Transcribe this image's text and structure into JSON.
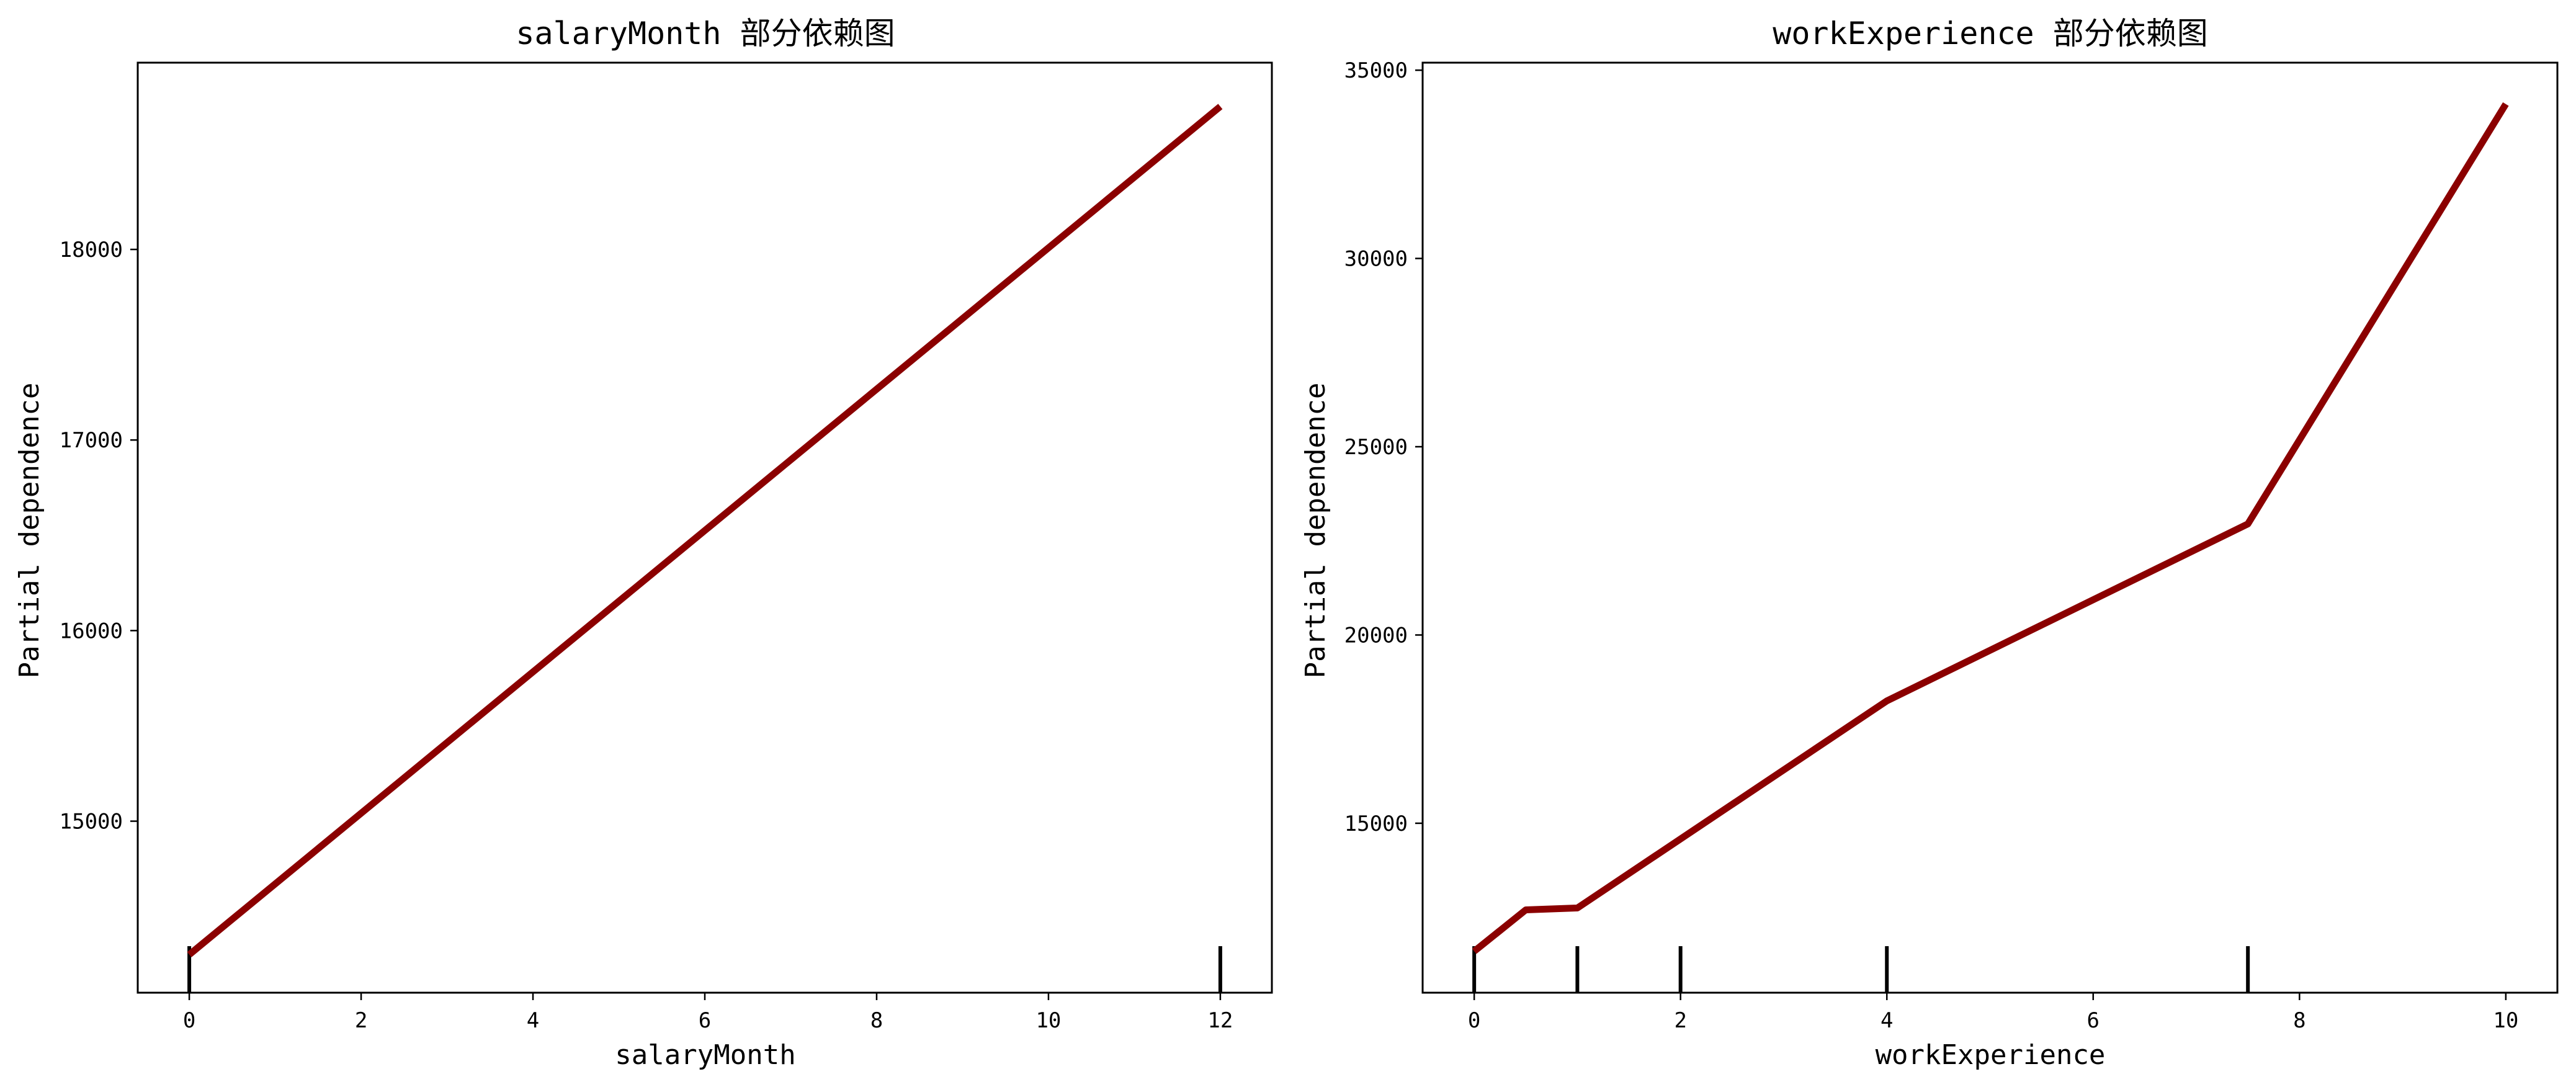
{
  "chart_data": [
    {
      "type": "line",
      "title": "salaryMonth 部分依赖图",
      "xlabel": "salaryMonth",
      "ylabel": "Partial dependence",
      "xlim": [
        -0.6,
        12.6
      ],
      "ylim": [
        14100,
        18980
      ],
      "xticks": [
        0,
        2,
        4,
        6,
        8,
        10,
        12
      ],
      "yticks": [
        15000,
        16000,
        17000,
        18000
      ],
      "series": [
        {
          "x": [
            0,
            12
          ],
          "y": [
            14300,
            18750
          ]
        }
      ],
      "rug": [
        0,
        12
      ],
      "line_color": "#8b0000",
      "grid": false
    },
    {
      "type": "line",
      "title": "workExperience 部分依赖图",
      "xlabel": "workExperience",
      "ylabel": "Partial dependence",
      "xlim": [
        -0.5,
        10.5
      ],
      "ylim": [
        10500,
        35200
      ],
      "xticks": [
        0,
        2,
        4,
        6,
        8,
        10
      ],
      "yticks": [
        15000,
        20000,
        25000,
        30000,
        35000
      ],
      "series": [
        {
          "x": [
            0,
            0.5,
            1,
            4,
            7.5,
            10
          ],
          "y": [
            11600,
            12700,
            12750,
            18250,
            22950,
            34100
          ]
        }
      ],
      "rug": [
        0,
        1,
        2,
        4,
        7.5
      ],
      "line_color": "#8b0000",
      "grid": false
    }
  ]
}
